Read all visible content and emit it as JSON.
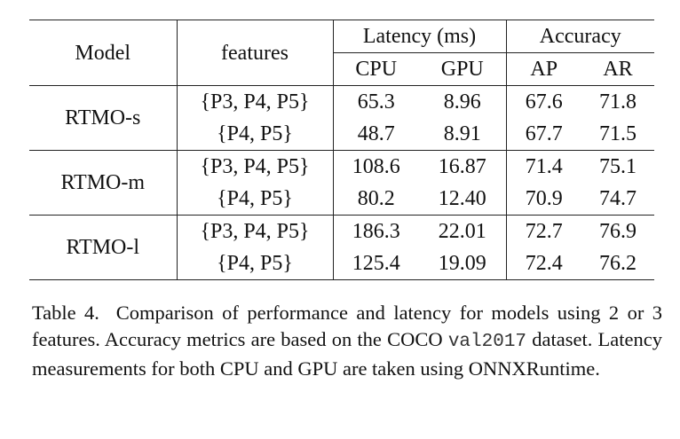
{
  "table": {
    "header": {
      "model": "Model",
      "features": "features",
      "latency": "Latency (ms)",
      "accuracy": "Accuracy",
      "cpu": "CPU",
      "gpu": "GPU",
      "ap": "AP",
      "ar": "AR"
    },
    "groups": [
      {
        "model": "RTMO-s",
        "rows": [
          [
            "{P3, P4, P5}",
            "65.3",
            "8.96",
            "67.6",
            "71.8"
          ],
          [
            "{P4, P5}",
            "48.7",
            "8.91",
            "67.7",
            "71.5"
          ]
        ]
      },
      {
        "model": "RTMO-m",
        "rows": [
          [
            "{P3, P4, P5}",
            "108.6",
            "16.87",
            "71.4",
            "75.1"
          ],
          [
            "{P4, P5}",
            "80.2",
            "12.40",
            "70.9",
            "74.7"
          ]
        ]
      },
      {
        "model": "RTMO-l",
        "rows": [
          [
            "{P3, P4, P5}",
            "186.3",
            "22.01",
            "72.7",
            "76.9"
          ],
          [
            "{P4, P5}",
            "125.4",
            "19.09",
            "72.4",
            "76.2"
          ]
        ]
      }
    ]
  },
  "caption": {
    "label": "Table 4.",
    "before": "Comparison of performance and latency for models using 2 or 3 features. Accuracy metrics are based on the COCO",
    "code": "val2017",
    "after": "dataset. Latency measurements for both CPU and GPU are taken using ONNXRuntime."
  }
}
